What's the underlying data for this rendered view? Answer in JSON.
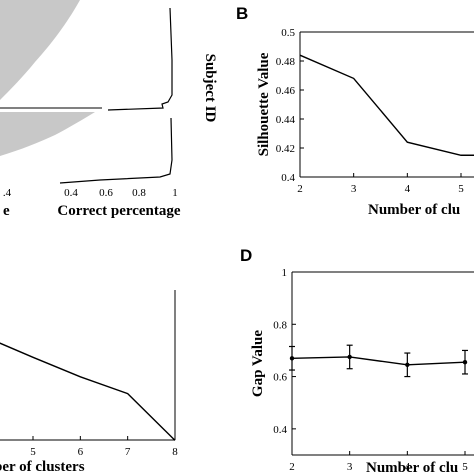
{
  "panels": {
    "A_partial": {
      "x_tick_labels": [
        ".4",
        "0.4",
        "0.6",
        "0.8",
        "1"
      ],
      "xlabel_left_fragment": "e",
      "xlabel": "Correct percentage",
      "ylabel": "Subject ID"
    },
    "B": {
      "letter": "B"
    },
    "C_partial": {},
    "D": {
      "letter": "D"
    }
  },
  "chart_data": [
    {
      "panel": "B",
      "type": "line",
      "title": "",
      "xlabel": "Number of clu",
      "ylabel": "Silhouette Value",
      "x": [
        2,
        3,
        4,
        5
      ],
      "series": [
        {
          "values": [
            0.484,
            0.468,
            0.424,
            0.415
          ]
        }
      ],
      "x_ticks": [
        "2",
        "3",
        "4",
        "5"
      ],
      "y_ticks": [
        "0.4",
        "0.42",
        "0.44",
        "0.46",
        "0.48",
        "0.5"
      ],
      "ylim": [
        0.4,
        0.5
      ],
      "xlim": [
        2,
        5.3
      ],
      "grid": false
    },
    {
      "panel": "C",
      "type": "line",
      "title": "",
      "xlabel": "ber of clusters",
      "ylabel": "",
      "x": [
        4,
        5,
        6,
        7,
        8
      ],
      "series": [
        {
          "values": [
            0.905,
            0.853,
            0.803,
            0.76,
            0.64
          ]
        }
      ],
      "x_ticks": [
        "5",
        "6",
        "7",
        "8"
      ],
      "xlim": [
        4,
        8
      ],
      "grid": false
    },
    {
      "panel": "D",
      "type": "line",
      "title": "",
      "xlabel": "Number of clu",
      "ylabel": "Gap Value",
      "x": [
        2,
        3,
        4,
        5
      ],
      "series": [
        {
          "values": [
            0.67,
            0.675,
            0.645,
            0.655
          ],
          "error": [
            0.045,
            0.045,
            0.045,
            0.045
          ]
        }
      ],
      "x_ticks": [
        "2",
        "3",
        "4",
        "5"
      ],
      "y_ticks": [
        "0.4",
        "0.6",
        "0.8",
        "1"
      ],
      "ylim": [
        0.3,
        1.0
      ],
      "xlim": [
        2,
        5.3
      ],
      "grid": false
    }
  ]
}
